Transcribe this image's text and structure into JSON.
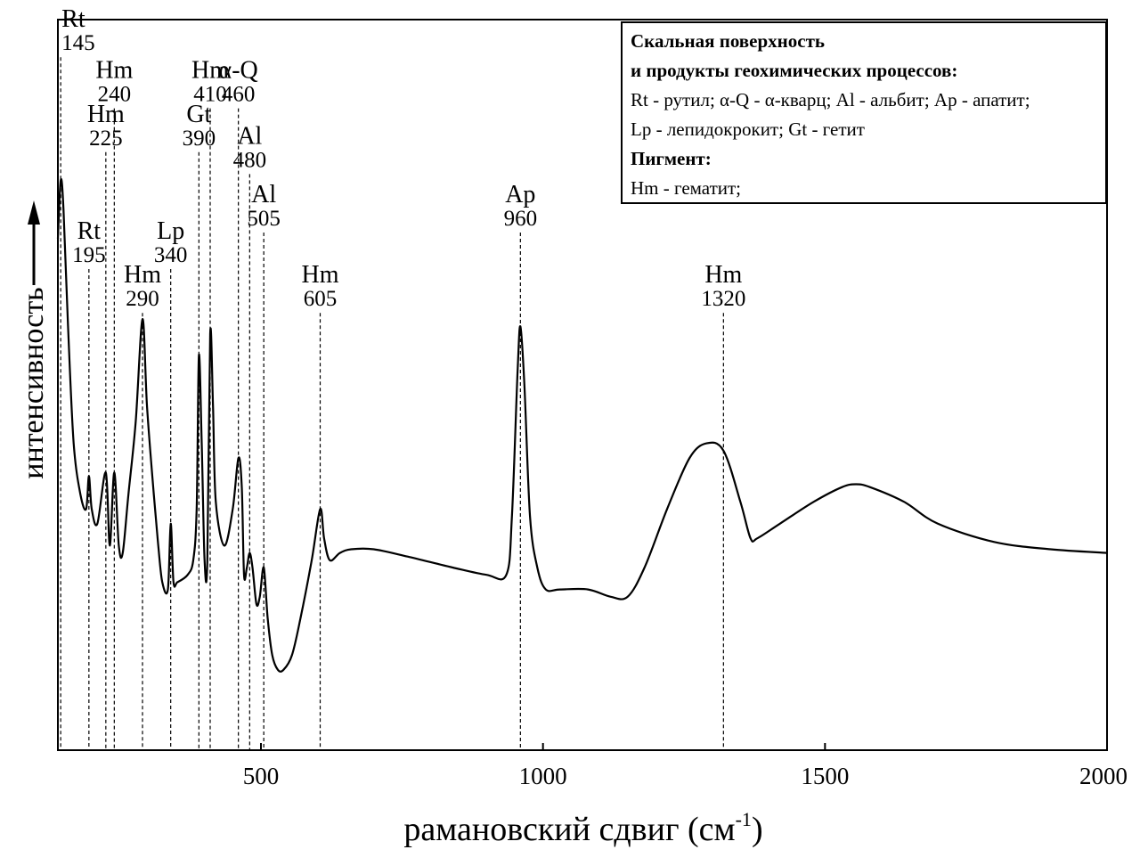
{
  "chart_data": {
    "type": "line",
    "title": "",
    "xlabel": "рамановский сдвиг (см",
    "xlabel_sup": "-1",
    "xlabel_close": ")",
    "ylabel": "интенсивность",
    "xlim": [
      140,
      2000
    ],
    "ylim": [
      0,
      1
    ],
    "x_ticks": [
      500,
      1000,
      1500,
      2000
    ],
    "y_ticks": [],
    "grid": false,
    "series": [
      {
        "points": [
          [
            140,
            0.7
          ],
          [
            145,
            0.78
          ],
          [
            150,
            0.74
          ],
          [
            158,
            0.58
          ],
          [
            168,
            0.42
          ],
          [
            180,
            0.35
          ],
          [
            190,
            0.33
          ],
          [
            195,
            0.375
          ],
          [
            200,
            0.33
          ],
          [
            210,
            0.31
          ],
          [
            225,
            0.38
          ],
          [
            232,
            0.28
          ],
          [
            240,
            0.38
          ],
          [
            248,
            0.28
          ],
          [
            255,
            0.27
          ],
          [
            265,
            0.35
          ],
          [
            278,
            0.45
          ],
          [
            290,
            0.59
          ],
          [
            298,
            0.47
          ],
          [
            310,
            0.35
          ],
          [
            318,
            0.28
          ],
          [
            325,
            0.23
          ],
          [
            335,
            0.22
          ],
          [
            340,
            0.31
          ],
          [
            345,
            0.23
          ],
          [
            352,
            0.23
          ],
          [
            370,
            0.24
          ],
          [
            380,
            0.26
          ],
          [
            386,
            0.33
          ],
          [
            390,
            0.54
          ],
          [
            395,
            0.42
          ],
          [
            400,
            0.26
          ],
          [
            405,
            0.26
          ],
          [
            410,
            0.57
          ],
          [
            415,
            0.47
          ],
          [
            420,
            0.34
          ],
          [
            435,
            0.28
          ],
          [
            450,
            0.33
          ],
          [
            460,
            0.4
          ],
          [
            466,
            0.36
          ],
          [
            470,
            0.24
          ],
          [
            475,
            0.25
          ],
          [
            480,
            0.27
          ],
          [
            485,
            0.25
          ],
          [
            492,
            0.2
          ],
          [
            498,
            0.21
          ],
          [
            505,
            0.25
          ],
          [
            512,
            0.18
          ],
          [
            520,
            0.13
          ],
          [
            530,
            0.11
          ],
          [
            540,
            0.11
          ],
          [
            555,
            0.13
          ],
          [
            570,
            0.18
          ],
          [
            590,
            0.26
          ],
          [
            605,
            0.33
          ],
          [
            612,
            0.29
          ],
          [
            622,
            0.26
          ],
          [
            640,
            0.27
          ],
          [
            660,
            0.275
          ],
          [
            700,
            0.275
          ],
          [
            760,
            0.265
          ],
          [
            840,
            0.25
          ],
          [
            900,
            0.24
          ],
          [
            935,
            0.24
          ],
          [
            945,
            0.32
          ],
          [
            955,
            0.52
          ],
          [
            960,
            0.58
          ],
          [
            967,
            0.5
          ],
          [
            977,
            0.32
          ],
          [
            990,
            0.25
          ],
          [
            1005,
            0.22
          ],
          [
            1030,
            0.22
          ],
          [
            1080,
            0.22
          ],
          [
            1120,
            0.21
          ],
          [
            1150,
            0.21
          ],
          [
            1180,
            0.25
          ],
          [
            1220,
            0.33
          ],
          [
            1260,
            0.4
          ],
          [
            1290,
            0.42
          ],
          [
            1320,
            0.41
          ],
          [
            1350,
            0.34
          ],
          [
            1368,
            0.29
          ],
          [
            1380,
            0.29
          ],
          [
            1420,
            0.31
          ],
          [
            1480,
            0.34
          ],
          [
            1530,
            0.36
          ],
          [
            1555,
            0.364
          ],
          [
            1580,
            0.36
          ],
          [
            1640,
            0.34
          ],
          [
            1700,
            0.31
          ],
          [
            1800,
            0.285
          ],
          [
            1900,
            0.275
          ],
          [
            2000,
            0.27
          ]
        ]
      }
    ],
    "annotations": [
      {
        "mineral": "Rt",
        "shift": "145",
        "x": 145,
        "label_level": 0.99
      },
      {
        "mineral": "Rt",
        "shift": "195",
        "x": 195,
        "label_level": 0.7
      },
      {
        "mineral": "Hm",
        "shift": "225",
        "x": 225,
        "label_level": 0.86
      },
      {
        "mineral": "Hm",
        "shift": "240",
        "x": 240,
        "label_level": 0.92
      },
      {
        "mineral": "Hm",
        "shift": "290",
        "x": 290,
        "label_level": 0.64
      },
      {
        "mineral": "Lp",
        "shift": "340",
        "x": 340,
        "label_level": 0.7
      },
      {
        "mineral": "Gt",
        "shift": "390",
        "x": 390,
        "label_level": 0.86
      },
      {
        "mineral": "Hm",
        "shift": "410",
        "x": 410,
        "label_level": 0.92
      },
      {
        "mineral": "α-Q",
        "shift": "460",
        "x": 460,
        "label_level": 0.92
      },
      {
        "mineral": "Al",
        "shift": "480",
        "x": 480,
        "label_level": 0.83
      },
      {
        "mineral": "Al",
        "shift": "505",
        "x": 505,
        "label_level": 0.75
      },
      {
        "mineral": "Hm",
        "shift": "605",
        "x": 605,
        "label_level": 0.64
      },
      {
        "mineral": "Ap",
        "shift": "960",
        "x": 960,
        "label_level": 0.75
      },
      {
        "mineral": "Hm",
        "shift": "1320",
        "x": 1320,
        "label_level": 0.64
      }
    ]
  },
  "legend": {
    "title_line1": "Скальная поверхность",
    "title_line2": "и продукты геохимических процессов:",
    "line3": "Rt - рутил; α-Q - α-кварц; Al - альбит; Ap - апатит;",
    "line4": "Lp - лепидокрокит; Gt - гетит",
    "title_pigment": "Пигмент:",
    "line6": "Hm - гематит;"
  }
}
